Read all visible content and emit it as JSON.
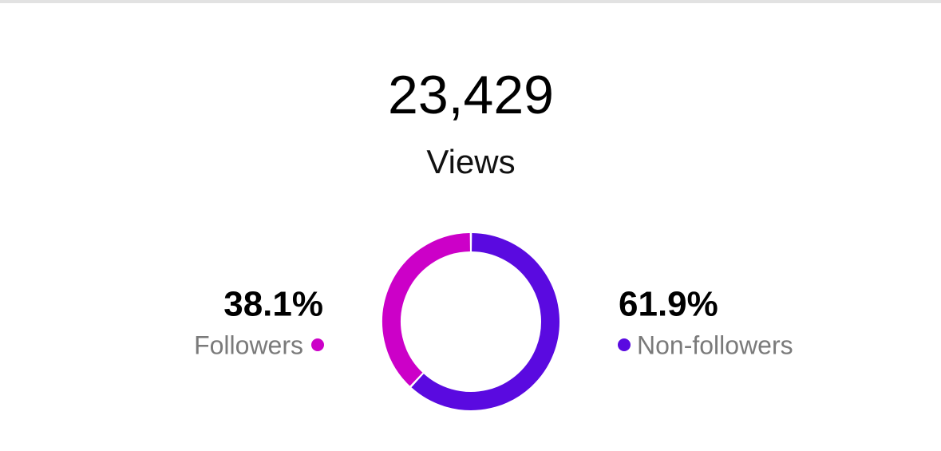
{
  "stat": {
    "value": "23,429",
    "label": "Views"
  },
  "chart_data": {
    "type": "pie",
    "donut": true,
    "categories": [
      "Followers",
      "Non-followers"
    ],
    "values": [
      38.1,
      61.9
    ],
    "value_labels": [
      "38.1%",
      "61.9%"
    ],
    "colors": [
      "#cc00c8",
      "#5a0ae0"
    ]
  }
}
